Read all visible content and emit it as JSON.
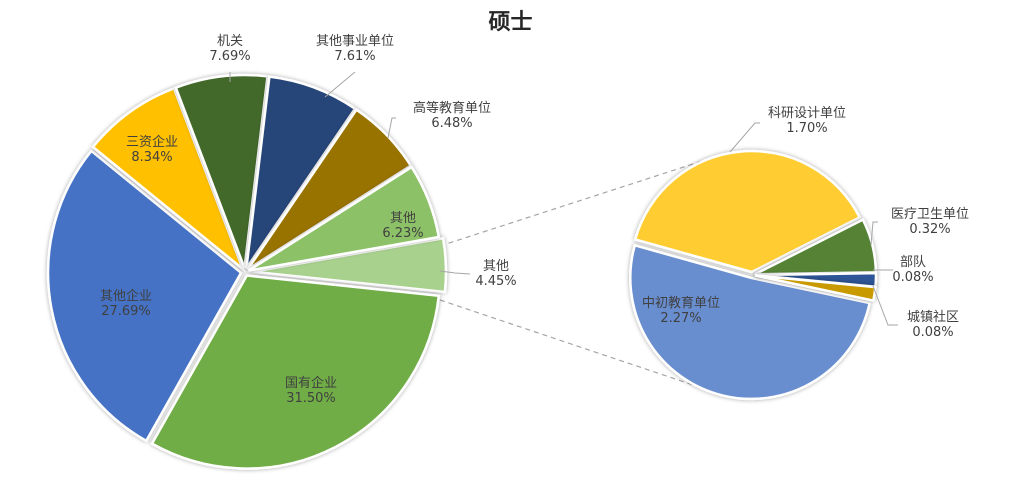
{
  "chart_data": {
    "type": "pie",
    "subtype": "pie-of-pie",
    "title": "硕士",
    "main_pie": {
      "slices": [
        {
          "label": "其他",
          "value": 4.45,
          "display": "4.45%",
          "color": "#A9D18E",
          "exploded": true
        },
        {
          "label": "国有企业",
          "value": 31.5,
          "display": "31.50%",
          "color": "#70AD47"
        },
        {
          "label": "其他企业",
          "value": 27.69,
          "display": "27.69%",
          "color": "#4472C4"
        },
        {
          "label": "三资企业",
          "value": 8.34,
          "display": "8.34%",
          "color": "#FFC000"
        },
        {
          "label": "机关",
          "value": 7.69,
          "display": "7.69%",
          "color": "#43682B"
        },
        {
          "label": "其他事业单位",
          "value": 7.61,
          "display": "7.61%",
          "color": "#264478"
        },
        {
          "label": "高等教育单位",
          "value": 6.48,
          "display": "6.48%",
          "color": "#997300"
        },
        {
          "label": "其他",
          "value": 6.23,
          "display": "6.23%",
          "color": "#8CC168"
        }
      ]
    },
    "secondary_pie": {
      "breaks_down": "其他 4.45%",
      "slices": [
        {
          "label": "中初教育单位",
          "value": 2.27,
          "display": "2.27%",
          "color": "#698ED0"
        },
        {
          "label": "科研设计单位",
          "value": 1.7,
          "display": "1.70%",
          "color": "#FFCD33"
        },
        {
          "label": "医疗卫生单位",
          "value": 0.32,
          "display": "0.32%",
          "color": "#548235"
        },
        {
          "label": "部队",
          "value": 0.08,
          "display": "0.08%",
          "color": "#2F5597"
        },
        {
          "label": "城镇社区",
          "value": 0.08,
          "display": "0.08%",
          "color": "#C99A06"
        }
      ]
    },
    "legend": "none (data labels on slices)"
  }
}
